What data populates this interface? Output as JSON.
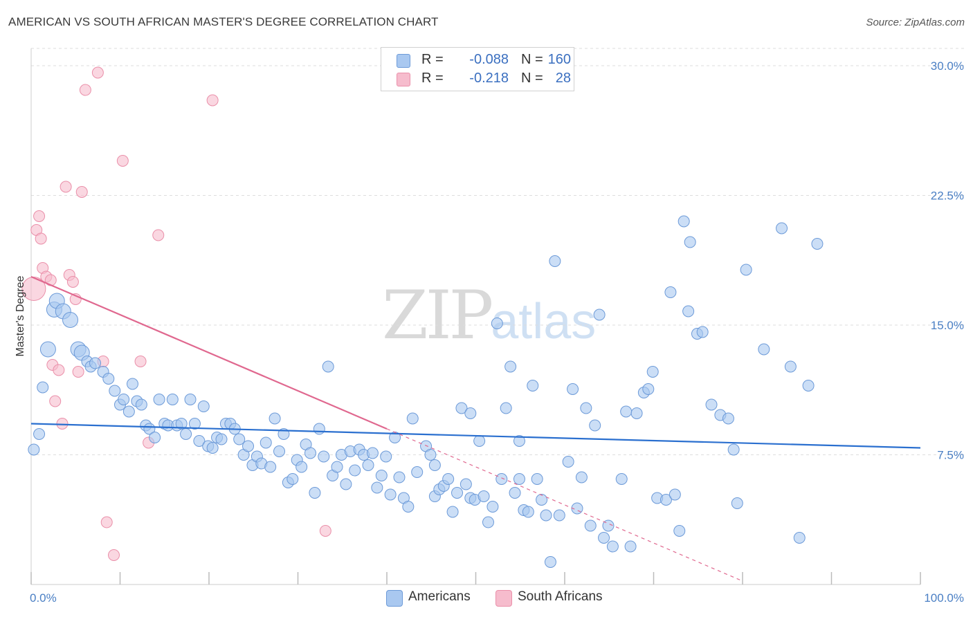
{
  "title": "AMERICAN VS SOUTH AFRICAN MASTER'S DEGREE CORRELATION CHART",
  "source": "Source: ZipAtlas.com",
  "watermark": {
    "zip": "ZIP",
    "atlas": "atlas"
  },
  "colors": {
    "americans_fill": "#a9c8f0",
    "americans_stroke": "#6c9ad8",
    "americans_line": "#2a6fcf",
    "southafricans_fill": "#f6bccd",
    "southafricans_stroke": "#ea8fa9",
    "southafricans_line": "#e0688f",
    "grid": "#dddddd",
    "tick_label": "#4a7fc4"
  },
  "legend": {
    "rows": [
      {
        "r_label": "R =",
        "r_value": "-0.088",
        "n_label": "N =",
        "n_value": "160"
      },
      {
        "r_label": "R =",
        "r_value": "-0.218",
        "n_label": "N =",
        "n_value": "28"
      }
    ]
  },
  "bottom_legend": {
    "americans": "Americans",
    "southafricans": "South Africans"
  },
  "chart_data": {
    "type": "scatter",
    "ylabel": "Master's Degree",
    "xlim": [
      0,
      100
    ],
    "ylim": [
      0,
      31
    ],
    "y_ticks": [
      7.5,
      15.0,
      22.5,
      30.0
    ],
    "y_tick_labels": [
      "7.5%",
      "15.0%",
      "22.5%",
      "30.0%"
    ],
    "x_tick_labels": [
      "0.0%",
      "100.0%"
    ],
    "grid": true,
    "legend_position": "top-center",
    "series": [
      {
        "name": "Americans",
        "trend": {
          "x": [
            0,
            100
          ],
          "y": [
            9.3,
            7.9
          ],
          "dashed_from": null
        },
        "points": [
          [
            0.3,
            7.8
          ],
          [
            0.9,
            8.7
          ],
          [
            1.3,
            11.4
          ],
          [
            1.9,
            13.6
          ],
          [
            2.6,
            15.9
          ],
          [
            2.9,
            16.4
          ],
          [
            3.6,
            15.8
          ],
          [
            4.4,
            15.3
          ],
          [
            5.3,
            13.6
          ],
          [
            5.7,
            13.4
          ],
          [
            6.3,
            12.9
          ],
          [
            6.7,
            12.6
          ],
          [
            7.2,
            12.8
          ],
          [
            8.1,
            12.3
          ],
          [
            8.7,
            11.9
          ],
          [
            9.4,
            11.2
          ],
          [
            10.0,
            10.4
          ],
          [
            10.4,
            10.7
          ],
          [
            11.0,
            10.0
          ],
          [
            11.4,
            11.6
          ],
          [
            11.9,
            10.6
          ],
          [
            12.4,
            10.4
          ],
          [
            12.9,
            9.2
          ],
          [
            13.3,
            9.0
          ],
          [
            13.9,
            8.5
          ],
          [
            14.4,
            10.7
          ],
          [
            15.0,
            9.3
          ],
          [
            15.4,
            9.2
          ],
          [
            15.9,
            10.7
          ],
          [
            16.4,
            9.2
          ],
          [
            16.9,
            9.3
          ],
          [
            17.4,
            8.7
          ],
          [
            17.9,
            10.7
          ],
          [
            18.4,
            9.3
          ],
          [
            18.9,
            8.3
          ],
          [
            19.4,
            10.3
          ],
          [
            19.9,
            8.0
          ],
          [
            20.4,
            7.9
          ],
          [
            20.9,
            8.5
          ],
          [
            21.4,
            8.4
          ],
          [
            21.9,
            9.3
          ],
          [
            22.4,
            9.3
          ],
          [
            22.9,
            9.0
          ],
          [
            23.4,
            8.4
          ],
          [
            23.9,
            7.5
          ],
          [
            24.4,
            8.0
          ],
          [
            24.9,
            6.9
          ],
          [
            25.4,
            7.4
          ],
          [
            25.9,
            7.0
          ],
          [
            26.4,
            8.2
          ],
          [
            26.9,
            6.8
          ],
          [
            27.4,
            9.6
          ],
          [
            27.9,
            7.7
          ],
          [
            28.4,
            8.7
          ],
          [
            28.9,
            5.9
          ],
          [
            29.4,
            6.1
          ],
          [
            29.9,
            7.2
          ],
          [
            30.4,
            6.8
          ],
          [
            30.9,
            8.1
          ],
          [
            31.4,
            7.6
          ],
          [
            31.9,
            5.3
          ],
          [
            32.4,
            9.0
          ],
          [
            32.9,
            7.4
          ],
          [
            33.4,
            12.6
          ],
          [
            33.9,
            6.3
          ],
          [
            34.4,
            6.8
          ],
          [
            34.9,
            7.5
          ],
          [
            35.4,
            5.8
          ],
          [
            35.9,
            7.7
          ],
          [
            36.4,
            6.6
          ],
          [
            36.9,
            7.8
          ],
          [
            37.4,
            7.5
          ],
          [
            37.9,
            6.9
          ],
          [
            38.4,
            7.6
          ],
          [
            38.9,
            5.6
          ],
          [
            39.4,
            6.3
          ],
          [
            39.9,
            7.4
          ],
          [
            40.4,
            5.2
          ],
          [
            40.9,
            8.5
          ],
          [
            41.4,
            6.2
          ],
          [
            41.9,
            5.0
          ],
          [
            42.4,
            4.5
          ],
          [
            42.9,
            9.6
          ],
          [
            43.4,
            6.5
          ],
          [
            44.4,
            8.0
          ],
          [
            44.9,
            7.5
          ],
          [
            45.4,
            5.1
          ],
          [
            45.9,
            5.5
          ],
          [
            46.4,
            5.7
          ],
          [
            46.9,
            6.1
          ],
          [
            47.4,
            4.2
          ],
          [
            47.9,
            5.3
          ],
          [
            48.4,
            10.2
          ],
          [
            48.9,
            5.8
          ],
          [
            49.4,
            5.0
          ],
          [
            49.9,
            4.9
          ],
          [
            50.4,
            8.3
          ],
          [
            50.9,
            5.1
          ],
          [
            51.4,
            3.6
          ],
          [
            51.9,
            4.5
          ],
          [
            52.9,
            6.1
          ],
          [
            53.4,
            10.2
          ],
          [
            53.9,
            12.6
          ],
          [
            54.4,
            5.3
          ],
          [
            54.9,
            8.3
          ],
          [
            55.4,
            4.3
          ],
          [
            55.9,
            4.2
          ],
          [
            56.4,
            11.5
          ],
          [
            56.9,
            6.1
          ],
          [
            57.4,
            4.9
          ],
          [
            57.9,
            4.0
          ],
          [
            58.4,
            1.3
          ],
          [
            58.9,
            18.7
          ],
          [
            59.4,
            4.0
          ],
          [
            60.4,
            7.1
          ],
          [
            60.9,
            11.3
          ],
          [
            61.4,
            4.4
          ],
          [
            61.9,
            6.2
          ],
          [
            62.4,
            10.2
          ],
          [
            62.9,
            3.4
          ],
          [
            63.4,
            9.2
          ],
          [
            63.9,
            15.6
          ],
          [
            64.4,
            2.7
          ],
          [
            64.9,
            3.4
          ],
          [
            65.4,
            2.2
          ],
          [
            66.4,
            6.1
          ],
          [
            66.9,
            10.0
          ],
          [
            67.4,
            2.2
          ],
          [
            68.1,
            9.9
          ],
          [
            68.9,
            11.1
          ],
          [
            69.4,
            11.3
          ],
          [
            69.9,
            12.3
          ],
          [
            70.4,
            5.0
          ],
          [
            71.4,
            4.9
          ],
          [
            72.4,
            5.2
          ],
          [
            72.9,
            3.1
          ],
          [
            73.4,
            21.0
          ],
          [
            74.1,
            19.8
          ],
          [
            74.9,
            14.5
          ],
          [
            75.5,
            14.6
          ],
          [
            76.5,
            10.4
          ],
          [
            77.5,
            9.8
          ],
          [
            78.4,
            9.6
          ],
          [
            79.0,
            7.8
          ],
          [
            79.4,
            4.7
          ],
          [
            80.4,
            18.2
          ],
          [
            82.4,
            13.6
          ],
          [
            84.4,
            20.6
          ],
          [
            85.4,
            12.6
          ],
          [
            86.4,
            2.7
          ],
          [
            87.4,
            11.5
          ],
          [
            88.4,
            19.7
          ],
          [
            71.9,
            16.9
          ],
          [
            73.9,
            15.8
          ],
          [
            52.4,
            15.1
          ],
          [
            49.4,
            9.9
          ],
          [
            45.4,
            6.9
          ],
          [
            54.9,
            6.1
          ]
        ]
      },
      {
        "name": "South Africans",
        "trend": {
          "x": [
            0,
            80
          ],
          "y": [
            17.8,
            0.2
          ],
          "dashed_from": 40
        },
        "points": [
          [
            0.3,
            17.1
          ],
          [
            0.6,
            20.5
          ],
          [
            0.9,
            21.3
          ],
          [
            1.1,
            20.0
          ],
          [
            1.3,
            18.3
          ],
          [
            1.7,
            17.8
          ],
          [
            2.2,
            17.6
          ],
          [
            2.4,
            12.7
          ],
          [
            2.7,
            10.6
          ],
          [
            3.1,
            12.4
          ],
          [
            3.5,
            9.3
          ],
          [
            3.9,
            23.0
          ],
          [
            4.3,
            17.9
          ],
          [
            4.7,
            17.5
          ],
          [
            5.0,
            16.5
          ],
          [
            5.3,
            12.3
          ],
          [
            5.7,
            22.7
          ],
          [
            6.1,
            28.6
          ],
          [
            7.5,
            29.6
          ],
          [
            8.1,
            12.9
          ],
          [
            8.5,
            3.6
          ],
          [
            9.3,
            1.7
          ],
          [
            10.3,
            24.5
          ],
          [
            12.3,
            12.9
          ],
          [
            13.2,
            8.2
          ],
          [
            14.3,
            20.2
          ],
          [
            20.4,
            28.0
          ],
          [
            33.1,
            3.1
          ]
        ]
      }
    ]
  }
}
